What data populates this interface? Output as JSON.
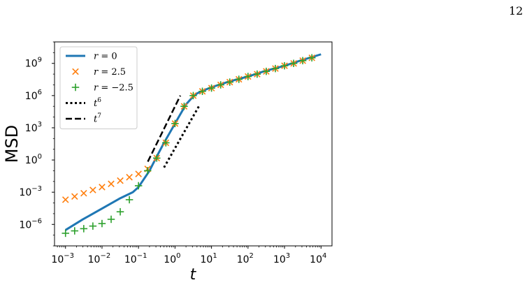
{
  "page_number": "12",
  "chart_data": {
    "type": "line",
    "title": "",
    "xlabel": "t",
    "ylabel": "MSD",
    "xscale": "log",
    "yscale": "log",
    "xlim": [
      0.0005,
      20000
    ],
    "ylim": [
      1e-08,
      100000000000.0
    ],
    "grid": false,
    "legend_position": "top-left",
    "x_ticks": [
      {
        "value": 0.001,
        "mantissa": "10",
        "exp": "−3"
      },
      {
        "value": 0.01,
        "mantissa": "10",
        "exp": "−2"
      },
      {
        "value": 0.1,
        "mantissa": "10",
        "exp": "−1"
      },
      {
        "value": 1,
        "mantissa": "10",
        "exp": "0"
      },
      {
        "value": 10,
        "mantissa": "10",
        "exp": "1"
      },
      {
        "value": 100,
        "mantissa": "10",
        "exp": "2"
      },
      {
        "value": 1000,
        "mantissa": "10",
        "exp": "3"
      },
      {
        "value": 10000,
        "mantissa": "10",
        "exp": "4"
      }
    ],
    "y_ticks": [
      {
        "value": 1e-06,
        "mantissa": "10",
        "exp": "−6"
      },
      {
        "value": 0.001,
        "mantissa": "10",
        "exp": "−3"
      },
      {
        "value": 1,
        "mantissa": "10",
        "exp": "0"
      },
      {
        "value": 1000.0,
        "mantissa": "10",
        "exp": "3"
      },
      {
        "value": 1000000.0,
        "mantissa": "10",
        "exp": "6"
      },
      {
        "value": 1000000000.0,
        "mantissa": "10",
        "exp": "9"
      }
    ],
    "series": [
      {
        "name": "r = 0",
        "style": "line",
        "color": "#1f77b4",
        "points": [
          [
            0.001,
            3e-07
          ],
          [
            0.003,
            3e-06
          ],
          [
            0.01,
            3e-05
          ],
          [
            0.03,
            0.00025
          ],
          [
            0.07,
            0.001
          ],
          [
            0.1,
            0.003
          ],
          [
            0.2,
            0.1
          ],
          [
            0.3,
            1.5
          ],
          [
            0.5,
            40
          ],
          [
            1,
            2500
          ],
          [
            2,
            150000.0
          ],
          [
            3,
            700000.0
          ],
          [
            4,
            1600000.0
          ],
          [
            6,
            3000000.0
          ],
          [
            10,
            6000000.0
          ],
          [
            30,
            20000000.0
          ],
          [
            100,
            60000000.0
          ],
          [
            300,
            200000000.0
          ],
          [
            1000,
            600000000.0
          ],
          [
            3000,
            2000000000.0
          ],
          [
            10000,
            7000000000.0
          ]
        ]
      },
      {
        "name": "r = 2.5",
        "style": "marker-x",
        "color": "#ff7f0e",
        "points": [
          [
            0.001,
            0.0002
          ],
          [
            0.00178,
            0.0004
          ],
          [
            0.00316,
            0.0008
          ],
          [
            0.00562,
            0.0016
          ],
          [
            0.01,
            0.003
          ],
          [
            0.0178,
            0.006
          ],
          [
            0.0316,
            0.012
          ],
          [
            0.0562,
            0.025
          ],
          [
            0.1,
            0.05
          ],
          [
            0.178,
            0.15
          ],
          [
            0.316,
            1.5
          ],
          [
            0.562,
            40
          ],
          [
            1,
            2500
          ],
          [
            1.78,
            100000.0
          ],
          [
            3.16,
            1000000.0
          ],
          [
            5.62,
            2500000.0
          ],
          [
            10,
            5000000.0
          ],
          [
            17.8,
            10000000.0
          ],
          [
            31.6,
            18000000.0
          ],
          [
            56.2,
            33000000.0
          ],
          [
            100,
            60000000.0
          ],
          [
            178,
            100000000.0
          ],
          [
            316,
            180000000.0
          ],
          [
            562,
            330000000.0
          ],
          [
            1000,
            600000000.0
          ],
          [
            1780,
            1000000000.0
          ],
          [
            3160,
            1800000000.0
          ],
          [
            5620,
            3300000000.0
          ]
        ]
      },
      {
        "name": "r = −2.5",
        "style": "marker-plus",
        "color": "#2ca02c",
        "points": [
          [
            0.001,
            1.5e-07
          ],
          [
            0.00178,
            2.5e-07
          ],
          [
            0.00316,
            4e-07
          ],
          [
            0.00562,
            7e-07
          ],
          [
            0.01,
            1.2e-06
          ],
          [
            0.0178,
            3e-06
          ],
          [
            0.0316,
            1.5e-05
          ],
          [
            0.0562,
            0.0002
          ],
          [
            0.1,
            0.004
          ],
          [
            0.178,
            0.1
          ],
          [
            0.316,
            1.5
          ],
          [
            0.562,
            40
          ],
          [
            1,
            2500
          ],
          [
            1.78,
            100000.0
          ],
          [
            3.16,
            1000000.0
          ],
          [
            5.62,
            2500000.0
          ],
          [
            10,
            5000000.0
          ],
          [
            17.8,
            10000000.0
          ],
          [
            31.6,
            18000000.0
          ],
          [
            56.2,
            33000000.0
          ],
          [
            100,
            60000000.0
          ],
          [
            178,
            100000000.0
          ],
          [
            316,
            180000000.0
          ],
          [
            562,
            330000000.0
          ],
          [
            1000,
            600000000.0
          ],
          [
            1780,
            1000000000.0
          ],
          [
            3160,
            1800000000.0
          ],
          [
            5620,
            3300000000.0
          ]
        ]
      },
      {
        "name": "t^6",
        "style": "dotted",
        "color": "#000000",
        "points": [
          [
            0.5,
            0.2
          ],
          [
            4.5,
            100000.0
          ]
        ]
      },
      {
        "name": "t^7",
        "style": "dashed",
        "color": "#000000",
        "points": [
          [
            0.18,
            0.7
          ],
          [
            1.4,
            1000000.0
          ]
        ]
      }
    ],
    "legend": [
      {
        "label": "r = 0",
        "main": "r",
        "rest": " = 0",
        "sup": "",
        "style": "line",
        "color": "#1f77b4"
      },
      {
        "label": "r = 2.5",
        "main": "r",
        "rest": " = 2.5",
        "sup": "",
        "style": "marker-x",
        "color": "#ff7f0e"
      },
      {
        "label": "r = −2.5",
        "main": "r",
        "rest": " = −2.5",
        "sup": "",
        "style": "marker-plus",
        "color": "#2ca02c"
      },
      {
        "label": "t^6",
        "main": "t",
        "rest": "",
        "sup": "6",
        "style": "dotted",
        "color": "#000000"
      },
      {
        "label": "t^7",
        "main": "t",
        "rest": "",
        "sup": "7",
        "style": "dashed",
        "color": "#000000"
      }
    ]
  }
}
